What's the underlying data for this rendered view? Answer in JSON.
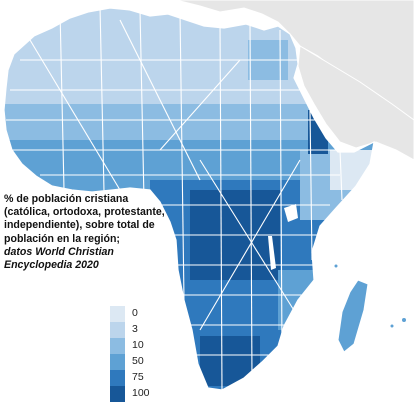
{
  "legend": {
    "caption": "% de población cristiana (católica, ortodoxa, protestante, independiente), sobre total de población en la región;",
    "source": "datos World Christian Encyclopedia 2020",
    "bins": [
      {
        "label": "0",
        "color": "#dce8f3"
      },
      {
        "label": "3",
        "color": "#bcd5ec"
      },
      {
        "label": "10",
        "color": "#8cbce2"
      },
      {
        "label": "50",
        "color": "#5ea1d4"
      },
      {
        "label": "75",
        "color": "#2f79bd"
      },
      {
        "label": "100",
        "color": "#175798"
      }
    ]
  },
  "colors": {
    "background": "#ffffff",
    "neighbor_land": "#e6e6e6",
    "region_border": "#ffffff"
  }
}
